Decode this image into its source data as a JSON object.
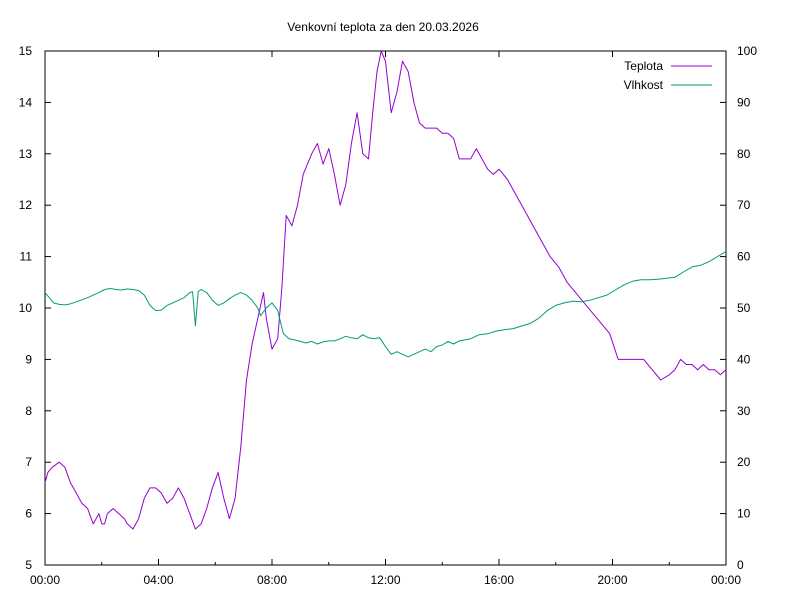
{
  "chart_data": {
    "type": "line",
    "title": "Venkovní teplota za den 20.03.2026",
    "x_tick_labels": [
      "00:00",
      "04:00",
      "08:00",
      "12:00",
      "16:00",
      "20:00",
      "00:00"
    ],
    "x_range_hours": [
      0,
      24
    ],
    "y_left_range": [
      5,
      15
    ],
    "y_left_ticks": [
      "5",
      "6",
      "7",
      "8",
      "9",
      "10",
      "11",
      "12",
      "13",
      "14",
      "15"
    ],
    "y_right_range": [
      0,
      100
    ],
    "y_right_ticks": [
      "0",
      "10",
      "20",
      "30",
      "40",
      "50",
      "60",
      "70",
      "80",
      "90",
      "100"
    ],
    "grid": false,
    "legend_position": "top-right",
    "series": [
      {
        "name": "Teplota",
        "axis": "left",
        "color": "#9400d3",
        "x": [
          0,
          0.1,
          0.25,
          0.5,
          0.7,
          0.9,
          1.1,
          1.3,
          1.5,
          1.7,
          1.8,
          1.9,
          2.0,
          2.1,
          2.2,
          2.4,
          2.6,
          2.8,
          2.9,
          3.1,
          3.3,
          3.5,
          3.7,
          3.9,
          4.1,
          4.3,
          4.5,
          4.7,
          4.9,
          5.1,
          5.3,
          5.5,
          5.7,
          5.9,
          6.1,
          6.3,
          6.5,
          6.7,
          6.9,
          7.1,
          7.3,
          7.5,
          7.7,
          7.8,
          8.0,
          8.2,
          8.35,
          8.5,
          8.7,
          8.9,
          9.1,
          9.4,
          9.6,
          9.8,
          10.0,
          10.2,
          10.4,
          10.6,
          10.8,
          11.0,
          11.2,
          11.4,
          11.55,
          11.7,
          11.85,
          12.0,
          12.2,
          12.4,
          12.6,
          12.8,
          13.0,
          13.2,
          13.4,
          13.6,
          13.8,
          14.0,
          14.2,
          14.4,
          14.6,
          14.8,
          15.0,
          15.2,
          15.4,
          15.6,
          15.8,
          16.0,
          16.3,
          16.6,
          16.9,
          17.2,
          17.5,
          17.8,
          18.1,
          18.4,
          18.7,
          19.0,
          19.3,
          19.6,
          19.9,
          20.2,
          20.5,
          20.8,
          21.1,
          21.4,
          21.7,
          22.0,
          22.2,
          22.4,
          22.6,
          22.8,
          23.0,
          23.2,
          23.4,
          23.6,
          23.8,
          24.0
        ],
        "values": [
          6.6,
          6.8,
          6.9,
          7.0,
          6.9,
          6.6,
          6.4,
          6.2,
          6.1,
          5.8,
          5.9,
          6.0,
          5.8,
          5.8,
          6.0,
          6.1,
          6.0,
          5.9,
          5.8,
          5.7,
          5.9,
          6.3,
          6.5,
          6.5,
          6.4,
          6.2,
          6.3,
          6.5,
          6.3,
          6.0,
          5.7,
          5.8,
          6.1,
          6.5,
          6.8,
          6.3,
          5.9,
          6.3,
          7.3,
          8.6,
          9.3,
          9.8,
          10.3,
          9.8,
          9.2,
          9.4,
          10.4,
          11.8,
          11.6,
          12.0,
          12.6,
          13.0,
          13.2,
          12.8,
          13.1,
          12.6,
          12.0,
          12.4,
          13.2,
          13.8,
          13.0,
          12.9,
          13.8,
          14.6,
          15.0,
          14.8,
          13.8,
          14.2,
          14.8,
          14.6,
          14.0,
          13.6,
          13.5,
          13.5,
          13.5,
          13.4,
          13.4,
          13.3,
          12.9,
          12.9,
          12.9,
          13.1,
          12.9,
          12.7,
          12.6,
          12.7,
          12.5,
          12.2,
          11.9,
          11.6,
          11.3,
          11.0,
          10.8,
          10.5,
          10.3,
          10.1,
          9.9,
          9.7,
          9.5,
          9.0,
          9.0,
          9.0,
          9.0,
          8.8,
          8.6,
          8.7,
          8.8,
          9.0,
          8.9,
          8.9,
          8.8,
          8.9,
          8.8,
          8.8,
          8.7,
          8.8
        ]
      },
      {
        "name": "Vlhkost",
        "axis": "right",
        "color": "#009e73",
        "x": [
          0,
          0.15,
          0.3,
          0.5,
          0.7,
          0.9,
          1.1,
          1.3,
          1.5,
          1.7,
          1.9,
          2.1,
          2.3,
          2.5,
          2.7,
          2.9,
          3.1,
          3.3,
          3.5,
          3.7,
          3.9,
          4.1,
          4.3,
          4.5,
          4.7,
          4.9,
          5.1,
          5.2,
          5.3,
          5.4,
          5.5,
          5.7,
          5.9,
          6.1,
          6.3,
          6.5,
          6.7,
          6.9,
          7.1,
          7.3,
          7.5,
          7.6,
          7.8,
          8.0,
          8.2,
          8.4,
          8.6,
          8.8,
          9.0,
          9.2,
          9.4,
          9.6,
          9.8,
          10.0,
          10.2,
          10.4,
          10.6,
          10.8,
          11.0,
          11.2,
          11.4,
          11.6,
          11.8,
          12.0,
          12.2,
          12.4,
          12.6,
          12.8,
          13.0,
          13.2,
          13.4,
          13.6,
          13.8,
          14.0,
          14.2,
          14.4,
          14.6,
          14.8,
          15.0,
          15.3,
          15.6,
          15.9,
          16.2,
          16.5,
          16.8,
          17.1,
          17.4,
          17.7,
          18.0,
          18.3,
          18.6,
          18.9,
          19.2,
          19.5,
          19.8,
          20.1,
          20.4,
          20.7,
          21.0,
          21.3,
          21.6,
          21.9,
          22.2,
          22.5,
          22.8,
          23.1,
          23.4,
          23.7,
          24.0
        ],
        "values": [
          53,
          52,
          51,
          50.7,
          50.6,
          50.8,
          51.2,
          51.6,
          52.0,
          52.5,
          53,
          53.6,
          53.8,
          53.6,
          53.5,
          53.7,
          53.6,
          53.4,
          52.5,
          50.5,
          49.5,
          49.6,
          50.5,
          51.0,
          51.5,
          52.0,
          53.0,
          53.2,
          46.5,
          53.2,
          53.6,
          53.0,
          51.5,
          50.5,
          51.0,
          51.8,
          52.5,
          53.0,
          52.5,
          51.5,
          50.0,
          48.5,
          50.0,
          51.0,
          49.5,
          45.0,
          44.0,
          43.8,
          43.5,
          43.2,
          43.5,
          43.0,
          43.4,
          43.6,
          43.6,
          44.0,
          44.5,
          44.2,
          44.0,
          44.8,
          44.2,
          44.0,
          44.2,
          42.5,
          41.0,
          41.5,
          41.0,
          40.5,
          41.0,
          41.5,
          42.0,
          41.5,
          42.5,
          42.8,
          43.5,
          43.0,
          43.6,
          43.8,
          44.0,
          44.8,
          45.0,
          45.5,
          45.8,
          46.0,
          46.5,
          47.0,
          48.0,
          49.5,
          50.5,
          51.0,
          51.3,
          51.2,
          51.5,
          52.0,
          52.5,
          53.5,
          54.5,
          55.2,
          55.5,
          55.5,
          55.6,
          55.8,
          56.0,
          57.0,
          58.0,
          58.3,
          59.0,
          60.0,
          61.0
        ]
      }
    ]
  }
}
